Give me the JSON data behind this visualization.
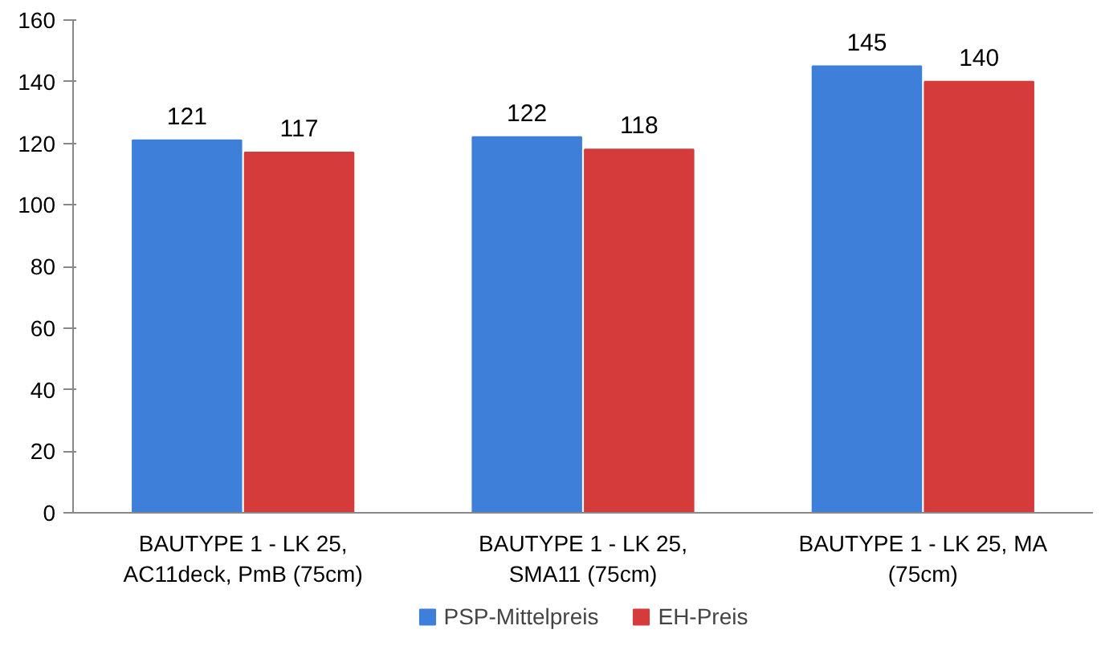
{
  "chart_data": {
    "type": "bar",
    "categories": [
      "BAUTYPE 1 - LK 25,\nAC11deck, PmB (75cm)",
      "BAUTYPE 1 - LK 25,\nSMA11 (75cm)",
      "BAUTYPE 1 - LK 25, MA\n(75cm)"
    ],
    "series": [
      {
        "name": "PSP-Mittelpreis",
        "color": "#3d7fd9",
        "values": [
          121,
          122,
          145
        ]
      },
      {
        "name": "EH-Preis",
        "color": "#d63b3b",
        "values": [
          117,
          118,
          140
        ]
      }
    ],
    "ylim": [
      0,
      160
    ],
    "yticks": [
      0,
      20,
      40,
      60,
      80,
      100,
      120,
      140,
      160
    ],
    "grid": false,
    "legend": "bottom",
    "data_labels": true
  }
}
